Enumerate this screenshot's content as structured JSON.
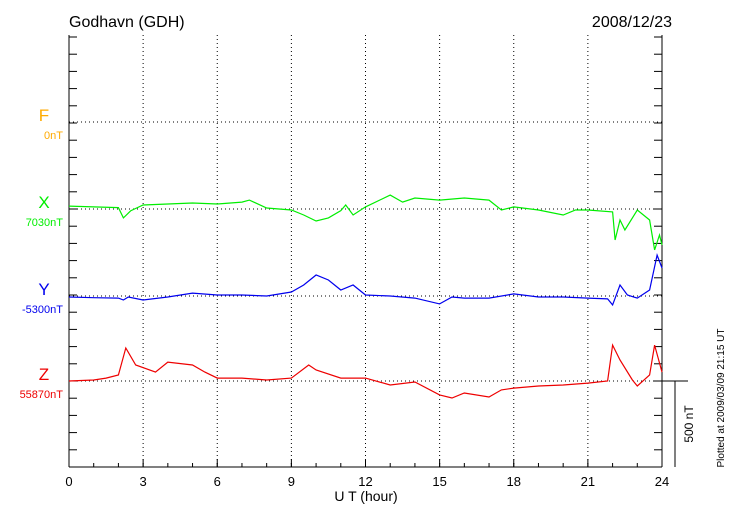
{
  "title": "Godhavn (GDH)",
  "date": "2008/12/23",
  "plotted_note": "Plotted at 2009/03/09 21:15 UT",
  "scale_label": "500 nT",
  "chart_data": {
    "type": "line",
    "xlabel": "U T (hour)",
    "xlim": [
      0,
      24
    ],
    "xticks": [
      "0",
      "3",
      "6",
      "9",
      "12",
      "15",
      "18",
      "21",
      "24"
    ],
    "scale_nT_per_offset": 500,
    "grid": true,
    "series": [
      {
        "name": "F",
        "baseline_label": "0nT",
        "color": "#ffaa00",
        "x": [],
        "values": []
      },
      {
        "name": "X",
        "baseline_label": "7030nT",
        "color": "#00ee00",
        "x": [
          0,
          1,
          2,
          2.2,
          2.5,
          3,
          4,
          5,
          6,
          7,
          7.3,
          8,
          9,
          9.5,
          10,
          10.5,
          11,
          11.2,
          11.5,
          12,
          13,
          13.5,
          14,
          15,
          16,
          17,
          17.5,
          18,
          19,
          20,
          20.5,
          21,
          22,
          22.1,
          22.3,
          22.5,
          23,
          23.5,
          23.7,
          23.9,
          24
        ],
        "values": [
          17,
          12,
          8,
          -52,
          -10,
          23,
          29,
          35,
          29,
          40,
          52,
          6,
          -6,
          -35,
          -70,
          -52,
          -10,
          23,
          -35,
          12,
          81,
          40,
          64,
          52,
          64,
          52,
          -6,
          12,
          -6,
          -35,
          -6,
          -6,
          -17,
          -180,
          -64,
          -122,
          -6,
          -64,
          -238,
          -151,
          -209
        ]
      },
      {
        "name": "Y",
        "baseline_label": "-5300nT",
        "color": "#0000ee",
        "x": [
          0,
          1,
          2,
          2.2,
          2.4,
          3,
          4,
          5,
          6,
          7,
          8,
          9,
          9.5,
          10,
          10.5,
          11,
          11.5,
          12,
          13,
          14,
          15,
          15.5,
          16,
          17,
          18,
          19,
          20,
          21,
          21.8,
          22,
          22.3,
          22.6,
          23,
          23.5,
          23.8,
          24
        ],
        "values": [
          -6,
          -10,
          -12,
          -23,
          -6,
          -23,
          -6,
          17,
          6,
          6,
          0,
          23,
          64,
          122,
          93,
          35,
          64,
          6,
          0,
          -12,
          -46,
          -6,
          -12,
          -12,
          12,
          -6,
          -6,
          -12,
          -17,
          -52,
          64,
          6,
          -12,
          35,
          238,
          163
        ]
      },
      {
        "name": "Z",
        "baseline_label": "55870nT",
        "color": "#ee0000",
        "x": [
          0,
          1,
          1.5,
          2,
          2.3,
          2.7,
          3.5,
          4,
          5,
          5.5,
          6,
          7,
          8,
          9,
          9.7,
          10,
          11,
          12,
          13,
          14,
          15,
          15.5,
          16,
          17,
          17.5,
          18,
          19,
          20,
          21,
          21.8,
          22,
          22.3,
          22.8,
          23,
          23.5,
          23.7,
          24
        ],
        "values": [
          0,
          6,
          17,
          35,
          192,
          93,
          52,
          110,
          93,
          52,
          17,
          17,
          6,
          17,
          93,
          64,
          17,
          17,
          -23,
          -6,
          -81,
          -99,
          -70,
          -93,
          -52,
          -41,
          -29,
          -23,
          -12,
          0,
          209,
          122,
          6,
          -29,
          35,
          209,
          52
        ]
      }
    ]
  }
}
